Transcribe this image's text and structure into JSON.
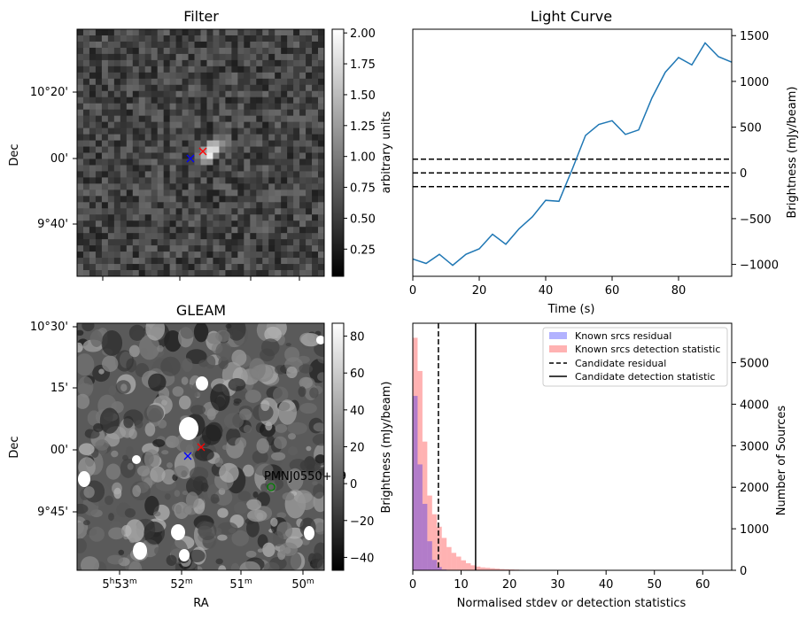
{
  "panels": {
    "filter": {
      "title": "Filter",
      "ylabel": "Dec",
      "yticks": [
        "10°20'",
        "00'",
        "9°40'"
      ],
      "colorbar": {
        "label": "arbitrary units",
        "ticks": [
          "2.00",
          "1.75",
          "1.50",
          "1.25",
          "1.00",
          "0.75",
          "0.50",
          "0.25"
        ],
        "tick_values": [
          2.0,
          1.75,
          1.5,
          1.25,
          1.0,
          0.75,
          0.5,
          0.25
        ],
        "range": [
          0.03,
          2.03
        ]
      },
      "markers": [
        {
          "name": "blue-x",
          "color": "#0000ff"
        },
        {
          "name": "red-x",
          "color": "#ff0000"
        }
      ]
    },
    "gleam": {
      "title": "GLEAM",
      "ylabel": "Dec",
      "xlabel": "RA",
      "yticks": [
        "10°30'",
        "15'",
        "00'",
        "9°45'"
      ],
      "xticks": [
        {
          "h": "5",
          "m": "53",
          "hs": "h",
          "ms": "m"
        },
        {
          "h": "",
          "m": "52",
          "hs": "",
          "ms": "m"
        },
        {
          "h": "",
          "m": "51",
          "hs": "",
          "ms": "m"
        },
        {
          "h": "",
          "m": "50",
          "hs": "",
          "ms": "m"
        }
      ],
      "source_label": "PMNJ0550+09",
      "source_color": "#008000",
      "colorbar": {
        "label": "Brightness (mJy/beam)",
        "ticks": [
          "80",
          "60",
          "40",
          "20",
          "0",
          "−20",
          "−40"
        ],
        "tick_values": [
          80,
          60,
          40,
          20,
          0,
          -20,
          -40
        ],
        "range": [
          -47,
          87
        ]
      }
    }
  },
  "chart_data": [
    {
      "type": "line",
      "title": "Light Curve",
      "xlabel": "Time (s)",
      "ylabel": "Brightness (mJy/beam)",
      "xlim": [
        0,
        96
      ],
      "ylim": [
        -1130,
        1570
      ],
      "xticks": [
        0,
        20,
        40,
        60,
        80
      ],
      "xtick_labels": [
        "0",
        "20",
        "40",
        "60",
        "80"
      ],
      "yticks": [
        1500,
        1000,
        500,
        0,
        -500,
        -1000
      ],
      "ytick_labels": [
        "1500",
        "1000",
        "500",
        "0",
        "−500",
        "−1000"
      ],
      "line_color": "#1f77b4",
      "x": [
        0,
        4,
        8,
        12,
        16,
        20,
        24,
        28,
        32,
        36,
        40,
        44,
        48,
        52,
        56,
        60,
        64,
        68,
        72,
        76,
        80,
        84,
        88,
        92,
        96
      ],
      "y": [
        -940,
        -990,
        -890,
        -1010,
        -890,
        -830,
        -670,
        -780,
        -610,
        -480,
        -300,
        -310,
        40,
        410,
        530,
        570,
        420,
        470,
        820,
        1100,
        1260,
        1180,
        1420,
        1270,
        1210
      ],
      "hlines": [
        {
          "y": 150,
          "style": "dashed",
          "color": "#000000"
        },
        {
          "y": 0,
          "style": "dashed",
          "color": "#000000"
        },
        {
          "y": -150,
          "style": "dashed",
          "color": "#000000"
        }
      ]
    },
    {
      "type": "histogram",
      "xlabel": "Normalised stdev or detection statistics",
      "ylabel": "Number of Sources",
      "xlim": [
        0,
        66
      ],
      "ylim": [
        0,
        5950
      ],
      "xticks": [
        0,
        10,
        20,
        30,
        40,
        50,
        60
      ],
      "xtick_labels": [
        "0",
        "10",
        "20",
        "30",
        "40",
        "50",
        "60"
      ],
      "yticks": [
        0,
        1000,
        2000,
        3000,
        4000,
        5000
      ],
      "ytick_labels": [
        "0",
        "1000",
        "2000",
        "3000",
        "4000",
        "5000"
      ],
      "bin_width": 1,
      "series": [
        {
          "name": "Known srcs residual",
          "color": "#0000ff",
          "opacity": 0.3,
          "bin_starts": [
            0,
            1,
            2,
            3,
            4,
            5,
            6,
            7
          ],
          "counts": [
            4200,
            2550,
            1600,
            700,
            250,
            80,
            20,
            5
          ]
        },
        {
          "name": "Known srcs detection statistic",
          "color": "#ff0000",
          "opacity": 0.3,
          "bin_starts": [
            0,
            1,
            2,
            3,
            4,
            5,
            6,
            7,
            8,
            9,
            10,
            11,
            12,
            13,
            14,
            15,
            16,
            17,
            18,
            19,
            20,
            21,
            22,
            23,
            24,
            25,
            26,
            27,
            28,
            29,
            30
          ],
          "counts": [
            5600,
            4800,
            3100,
            1800,
            1350,
            1050,
            780,
            560,
            420,
            330,
            240,
            170,
            120,
            90,
            70,
            60,
            50,
            40,
            30,
            25,
            20,
            16,
            12,
            10,
            8,
            6,
            5,
            4,
            3,
            3,
            2
          ]
        }
      ],
      "vlines": [
        {
          "name": "Candidate residual",
          "x": 5.3,
          "style": "dashed",
          "color": "#000000"
        },
        {
          "name": "Candidate detection statistic",
          "x": 13.0,
          "style": "solid",
          "color": "#000000"
        }
      ],
      "legend": [
        "Known srcs residual",
        "Known srcs detection statistic",
        "Candidate residual",
        "Candidate detection statistic"
      ],
      "legend_position": "top-right"
    }
  ]
}
